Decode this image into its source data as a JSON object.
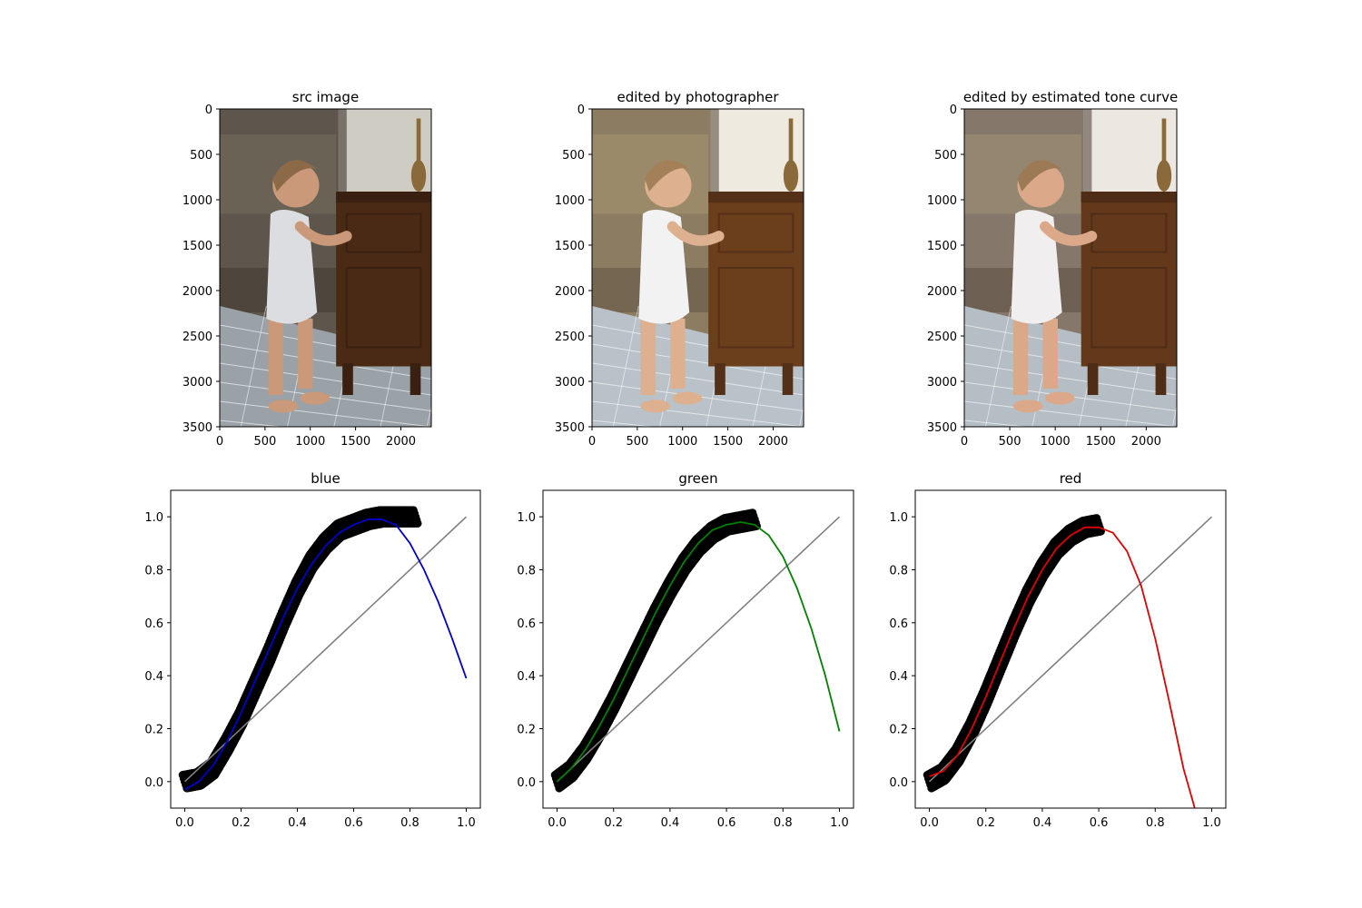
{
  "chart_data": [
    {
      "type": "image",
      "title": "src image",
      "xticks": [
        0,
        500,
        1000,
        1500,
        2000
      ],
      "yticks": [
        0,
        500,
        1000,
        1500,
        2000,
        2500,
        3000,
        3500
      ],
      "xlim": [
        0,
        2336
      ],
      "ylim": [
        3500,
        0
      ],
      "edit": "none"
    },
    {
      "type": "image",
      "title": "edited by photographer",
      "xticks": [
        0,
        500,
        1000,
        1500,
        2000
      ],
      "yticks": [
        0,
        500,
        1000,
        1500,
        2000,
        2500,
        3000,
        3500
      ],
      "xlim": [
        0,
        2336
      ],
      "ylim": [
        3500,
        0
      ],
      "edit": "photographer"
    },
    {
      "type": "image",
      "title": "edited by estimated tone curve",
      "xticks": [
        0,
        500,
        1000,
        1500,
        2000
      ],
      "yticks": [
        0,
        500,
        1000,
        1500,
        2000,
        2500,
        3000,
        3500
      ],
      "xlim": [
        0,
        2336
      ],
      "ylim": [
        3500,
        0
      ],
      "edit": "estimated"
    },
    {
      "type": "scatter",
      "title": "blue",
      "xlim": [
        -0.05,
        1.05
      ],
      "ylim": [
        -0.1,
        1.1
      ],
      "xticks": [
        "0.0",
        "0.2",
        "0.4",
        "0.6",
        "0.8",
        "1.0"
      ],
      "yticks": [
        "0.0",
        "0.2",
        "0.4",
        "0.6",
        "0.8",
        "1.0"
      ],
      "curve_color": "#0000cc",
      "scatter_color": "#000000",
      "identity_color": "#808080",
      "scatter_points": {
        "x": [
          0.0,
          0.05,
          0.1,
          0.15,
          0.2,
          0.25,
          0.3,
          0.35,
          0.4,
          0.45,
          0.5,
          0.55,
          0.6,
          0.65,
          0.7,
          0.75,
          0.8,
          0.82
        ],
        "y": [
          0.0,
          0.01,
          0.05,
          0.14,
          0.24,
          0.36,
          0.48,
          0.61,
          0.73,
          0.83,
          0.9,
          0.95,
          0.97,
          0.99,
          1.0,
          1.0,
          1.0,
          1.0
        ]
      },
      "scatter_band": 0.025,
      "fit_curve": {
        "x": [
          0.0,
          0.05,
          0.1,
          0.15,
          0.2,
          0.25,
          0.3,
          0.35,
          0.4,
          0.45,
          0.5,
          0.55,
          0.6,
          0.65,
          0.7,
          0.75,
          0.8,
          0.85,
          0.9,
          0.95,
          1.0
        ],
        "y": [
          -0.03,
          0.0,
          0.06,
          0.15,
          0.26,
          0.38,
          0.5,
          0.62,
          0.73,
          0.82,
          0.89,
          0.94,
          0.97,
          0.99,
          0.99,
          0.97,
          0.9,
          0.8,
          0.68,
          0.54,
          0.39
        ]
      },
      "identity": {
        "x": [
          0.0,
          1.0
        ],
        "y": [
          0.0,
          1.0
        ]
      }
    },
    {
      "type": "scatter",
      "title": "green",
      "xlim": [
        -0.05,
        1.05
      ],
      "ylim": [
        -0.1,
        1.1
      ],
      "xticks": [
        "0.0",
        "0.2",
        "0.4",
        "0.6",
        "0.8",
        "1.0"
      ],
      "yticks": [
        "0.0",
        "0.2",
        "0.4",
        "0.6",
        "0.8",
        "1.0"
      ],
      "curve_color": "#008000",
      "scatter_color": "#000000",
      "identity_color": "#808080",
      "scatter_points": {
        "x": [
          0.0,
          0.05,
          0.1,
          0.15,
          0.2,
          0.25,
          0.3,
          0.35,
          0.4,
          0.45,
          0.5,
          0.55,
          0.6,
          0.65,
          0.7
        ],
        "y": [
          0.0,
          0.04,
          0.11,
          0.2,
          0.3,
          0.41,
          0.52,
          0.63,
          0.73,
          0.82,
          0.89,
          0.94,
          0.97,
          0.98,
          0.99
        ]
      },
      "scatter_band": 0.025,
      "fit_curve": {
        "x": [
          0.0,
          0.05,
          0.1,
          0.15,
          0.2,
          0.25,
          0.3,
          0.35,
          0.4,
          0.45,
          0.5,
          0.55,
          0.6,
          0.65,
          0.7,
          0.75,
          0.8,
          0.85,
          0.9,
          0.95,
          1.0
        ],
        "y": [
          0.0,
          0.05,
          0.12,
          0.21,
          0.31,
          0.42,
          0.53,
          0.64,
          0.74,
          0.83,
          0.9,
          0.95,
          0.97,
          0.98,
          0.97,
          0.93,
          0.85,
          0.73,
          0.58,
          0.4,
          0.19
        ]
      },
      "identity": {
        "x": [
          0.0,
          1.0
        ],
        "y": [
          0.0,
          1.0
        ]
      }
    },
    {
      "type": "scatter",
      "title": "red",
      "xlim": [
        -0.05,
        1.05
      ],
      "ylim": [
        -0.1,
        1.1
      ],
      "xticks": [
        "0.0",
        "0.2",
        "0.4",
        "0.6",
        "0.8",
        "1.0"
      ],
      "yticks": [
        "0.0",
        "0.2",
        "0.4",
        "0.6",
        "0.8",
        "1.0"
      ],
      "curve_color": "#dd0000",
      "scatter_color": "#000000",
      "identity_color": "#808080",
      "scatter_points": {
        "x": [
          0.0,
          0.05,
          0.1,
          0.15,
          0.2,
          0.25,
          0.3,
          0.35,
          0.4,
          0.45,
          0.5,
          0.55,
          0.6
        ],
        "y": [
          0.0,
          0.03,
          0.1,
          0.2,
          0.32,
          0.45,
          0.58,
          0.7,
          0.8,
          0.88,
          0.93,
          0.96,
          0.97
        ]
      },
      "scatter_band": 0.025,
      "fit_curve": {
        "x": [
          0.0,
          0.05,
          0.1,
          0.15,
          0.2,
          0.25,
          0.3,
          0.35,
          0.4,
          0.45,
          0.5,
          0.55,
          0.6,
          0.65,
          0.7,
          0.75,
          0.8,
          0.85,
          0.9,
          0.94
        ],
        "y": [
          0.02,
          0.04,
          0.1,
          0.2,
          0.32,
          0.45,
          0.58,
          0.7,
          0.8,
          0.88,
          0.93,
          0.96,
          0.96,
          0.94,
          0.87,
          0.74,
          0.54,
          0.3,
          0.05,
          -0.1
        ]
      },
      "identity": {
        "x": [
          0.0,
          1.0
        ],
        "y": [
          0.0,
          1.0
        ]
      }
    }
  ]
}
